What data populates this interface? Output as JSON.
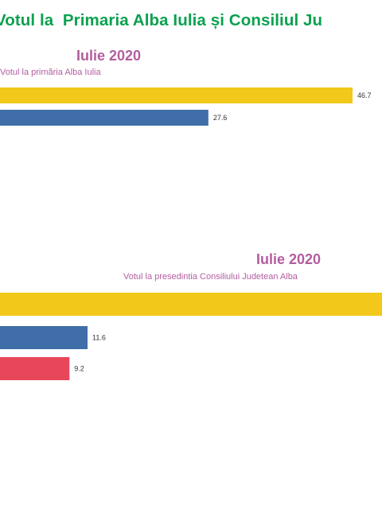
{
  "title": "Votul la  Primaria Alba Iulia și Consiliul Ju",
  "colors": {
    "title": "#0aa14f",
    "subtitle": "#b35d9f",
    "yellow": "#f2c81a",
    "blue": "#3f6ea8",
    "red": "#e8475a"
  },
  "chart_data": [
    {
      "type": "bar",
      "orientation": "horizontal",
      "period": "Iulie 2020",
      "subtitle": "Votul la primăria Alba Iulia",
      "xlim": [
        0,
        50.6
      ],
      "values": [
        46.7,
        27.6
      ],
      "labels": [
        "46.7",
        "27.6"
      ],
      "colors": [
        "#f2c81a",
        "#3f6ea8"
      ]
    },
    {
      "type": "bar",
      "orientation": "horizontal",
      "period": "Iulie 2020",
      "subtitle": "Votul la presedintia Consiliului Judetean Alba",
      "xlim": [
        0,
        50.6
      ],
      "values": [
        null,
        11.6,
        9.2
      ],
      "labels": [
        "",
        "11.6",
        "9.2"
      ],
      "colors": [
        "#f2c81a",
        "#3f6ea8",
        "#e8475a"
      ]
    }
  ]
}
